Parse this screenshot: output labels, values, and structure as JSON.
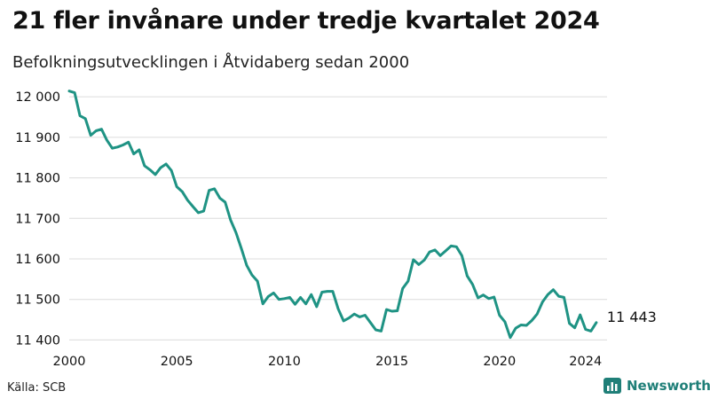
{
  "title": "21 fler invånare under tredje kvartalet 2024",
  "subtitle": "Befolkningsutvecklingen i Åtvidaberg sedan 2000",
  "source": "Källa: SCB",
  "brand": "Newsworthy",
  "colors": {
    "line": "#1f9384",
    "grid": "#dcdcdc",
    "brand": "#1f7f78"
  },
  "chart_data": {
    "type": "line",
    "title": "21 fler invånare under tredje kvartalet 2024",
    "subtitle": "Befolkningsutvecklingen i Åtvidaberg sedan 2000",
    "xlabel": "",
    "ylabel": "",
    "xlim": [
      2000,
      2025
    ],
    "ylim": [
      11390,
      12020
    ],
    "x_ticks": [
      2000,
      2005,
      2010,
      2015,
      2020,
      2024
    ],
    "x_tick_labels": [
      "2000",
      "2005",
      "2010",
      "2015",
      "2020",
      "2024"
    ],
    "y_ticks": [
      11400,
      11500,
      11600,
      11700,
      11800,
      11900,
      12000
    ],
    "y_tick_labels": [
      "11 400",
      "11 500",
      "11 600",
      "11 700",
      "11 800",
      "11 900",
      "12 000"
    ],
    "grid": "horizontal",
    "end_label": "11 443",
    "series": [
      {
        "x": [
          2000.0,
          2000.25,
          2000.5,
          2000.75,
          2001.0,
          2001.25,
          2001.5,
          2001.75,
          2002.0,
          2002.25,
          2002.5,
          2002.75,
          2003.0,
          2003.25,
          2003.5,
          2003.75,
          2004.0,
          2004.25,
          2004.5,
          2004.75,
          2005.0,
          2005.25,
          2005.5,
          2005.75,
          2006.0,
          2006.25,
          2006.5,
          2006.75,
          2007.0,
          2007.25,
          2007.5,
          2007.75,
          2008.0,
          2008.25,
          2008.5,
          2008.75,
          2009.0,
          2009.25,
          2009.5,
          2009.75,
          2010.0,
          2010.25,
          2010.5,
          2010.75,
          2011.0,
          2011.25,
          2011.5,
          2011.75,
          2012.0,
          2012.25,
          2012.5,
          2012.75,
          2013.0,
          2013.25,
          2013.5,
          2013.75,
          2014.0,
          2014.25,
          2014.5,
          2014.75,
          2015.0,
          2015.25,
          2015.5,
          2015.75,
          2016.0,
          2016.25,
          2016.5,
          2016.75,
          2017.0,
          2017.25,
          2017.5,
          2017.75,
          2018.0,
          2018.25,
          2018.5,
          2018.75,
          2019.0,
          2019.25,
          2019.5,
          2019.75,
          2020.0,
          2020.25,
          2020.5,
          2020.75,
          2021.0,
          2021.25,
          2021.5,
          2021.75,
          2022.0,
          2022.25,
          2022.5,
          2022.75,
          2023.0,
          2023.25,
          2023.5,
          2023.75,
          2024.0,
          2024.25,
          2024.5
        ],
        "values": [
          12014,
          12010,
          11953,
          11946,
          11905,
          11916,
          11920,
          11893,
          11873,
          11876,
          11881,
          11888,
          11859,
          11869,
          11830,
          11820,
          11808,
          11825,
          11834,
          11818,
          11778,
          11766,
          11745,
          11729,
          11714,
          11718,
          11769,
          11773,
          11750,
          11740,
          11696,
          11665,
          11626,
          11584,
          11560,
          11545,
          11489,
          11507,
          11516,
          11500,
          11502,
          11505,
          11488,
          11505,
          11489,
          11512,
          11482,
          11518,
          11520,
          11520,
          11477,
          11447,
          11454,
          11464,
          11457,
          11461,
          11443,
          11425,
          11422,
          11475,
          11471,
          11472,
          11527,
          11545,
          11598,
          11586,
          11597,
          11617,
          11622,
          11608,
          11620,
          11632,
          11630,
          11608,
          11558,
          11537,
          11504,
          11511,
          11502,
          11506,
          11461,
          11445,
          11406,
          11429,
          11437,
          11436,
          11448,
          11464,
          11494,
          11512,
          11524,
          11508,
          11505,
          11441,
          11430,
          11462,
          11426,
          11422,
          11443
        ]
      }
    ]
  }
}
